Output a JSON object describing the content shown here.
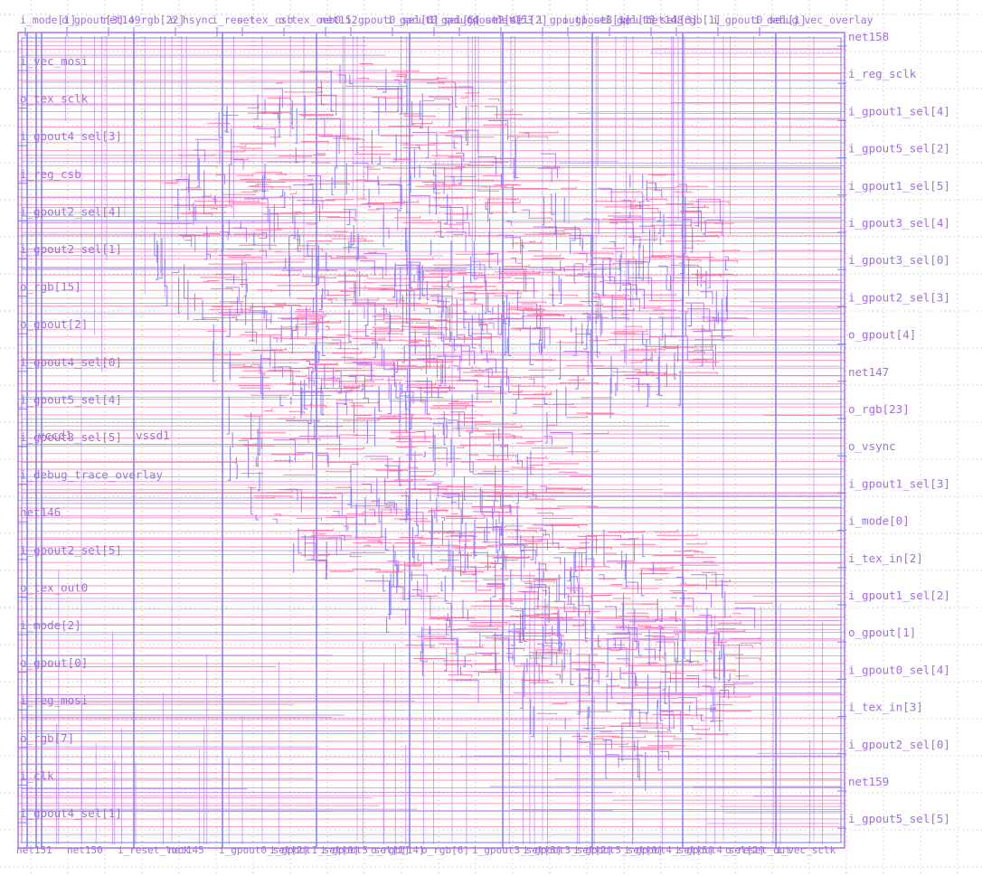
{
  "colors": {
    "background": "#ffffff",
    "metal1": "#ff6fa0",
    "metal2": "#7f7fff",
    "metal3": "#b070f0",
    "label": "#a070e0",
    "grid": "#9a9a9a"
  },
  "left_pins": [
    "i_vec_mosi",
    "o_tex_sclk",
    "i_gpout4_sel[3]",
    "i_reg_csb",
    "i_gpout2_sel[4]",
    "i_gpout2_sel[1]",
    "o_rgb[15]",
    "o_gpout[2]",
    "i_gpout4_sel[0]",
    "i_gpout5_sel[4]",
    "i_gpout3_sel[5]",
    "i_debug_trace_overlay",
    "net146",
    "i_gpout2_sel[5]",
    "o_tex_out0",
    "i_mode[2]",
    "o_gpout[0]",
    "i_reg_mosi",
    "o_rgb[7]",
    "i_clk",
    "i_gpout4_sel[1]"
  ],
  "right_pins": [
    "net158",
    "i_reg_sclk",
    "i_gpout1_sel[4]",
    "i_gpout5_sel[2]",
    "i_gpout1_sel[5]",
    "i_gpout3_sel[4]",
    "i_gpout3_sel[0]",
    "i_gpout2_sel[3]",
    "o_gpout[4]",
    "net147",
    "o_rgb[23]",
    "o_vsync",
    "i_gpout1_sel[3]",
    "i_mode[0]",
    "i_tex_in[2]",
    "i_gpout1_sel[2]",
    "o_gpout[1]",
    "i_gpout0_sel[4]",
    "i_tex_in[3]",
    "i_gpout2_sel[0]",
    "net159",
    "i_gpout5_sel[5]"
  ],
  "top_pins": [
    "i_mode[1]",
    "o_gpout[3]",
    "net149",
    "o_rgb[22]",
    "o_hsync",
    "i_reset",
    "o_tex_csb",
    "o_tex_oeb0",
    "net152",
    "i_gpout0_sel[0]",
    "i_gpout0_sel[5]",
    "i_gpout4_sel[4]",
    "i_gpout2_sel[2]",
    "net153",
    "i_gpout1_sel[1]",
    "i_gpout3_sel[1]",
    "i_gpout5_sel[3]",
    "net148",
    "o_rgb[1]",
    "i_gpout0_sel[1]",
    "i_debug_vec_overlay"
  ],
  "bottom_pins": [
    "net151",
    "net150",
    "i_reset_lock",
    "net145",
    "i_gpout0_sel[2]",
    "i_gpout1_sel[0]",
    "i_gpout5_sel[1]",
    "o_rgb[14]",
    "o_rgb[6]",
    "i_gpout3_sel[3]",
    "i_gpout3_sel[2]",
    "i_gpout5_sel[0]",
    "i_gpout4_sel[5]",
    "i_gpout4_sel[2]",
    "o_reset_out",
    "i_vec_sclk"
  ],
  "power_labels": [
    "vssd1",
    "vccd1"
  ]
}
